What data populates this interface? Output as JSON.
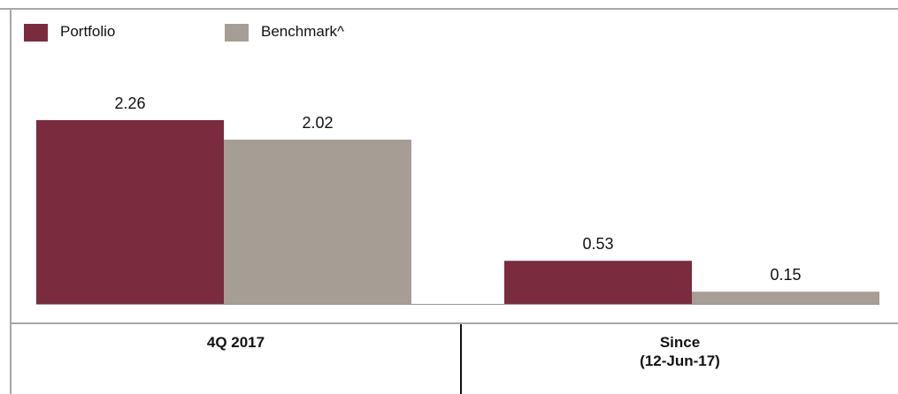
{
  "legend": {
    "portfolio_label": "Portfolio",
    "benchmark_label": "Benchmark^"
  },
  "categories": {
    "first": "4Q 2017",
    "second_line1": "Since",
    "second_line2": "(12-Jun-17)"
  },
  "colors": {
    "portfolio": "#7b2b3e",
    "benchmark": "#a69e94",
    "frame": "#a7a7a7"
  },
  "chart_data": {
    "type": "bar",
    "categories": [
      "4Q 2017",
      "Since (12-Jun-17)"
    ],
    "series": [
      {
        "name": "Portfolio",
        "values": [
          2.26,
          0.53
        ]
      },
      {
        "name": "Benchmark^",
        "values": [
          2.02,
          0.15
        ]
      }
    ],
    "value_labels": [
      [
        "2.26",
        "0.53"
      ],
      [
        "2.02",
        "0.15"
      ]
    ],
    "ylim": [
      0,
      2.26
    ],
    "grid": false,
    "legend_position": "top-left"
  }
}
